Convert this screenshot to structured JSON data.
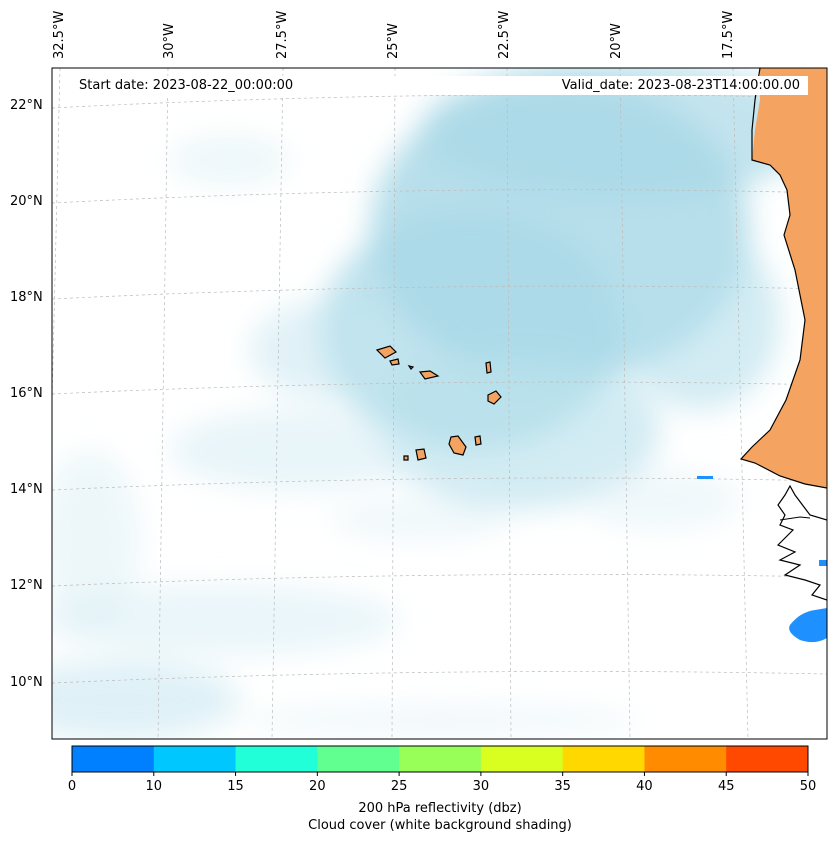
{
  "header": {
    "start_date": "Start date: 2023-08-22_00:00:00",
    "valid_date": "Valid_date: 2023-08-23T14:00:00.00"
  },
  "lon_ticks": [
    "32.5°W",
    "30°W",
    "27.5°W",
    "25°W",
    "22.5°W",
    "20°W",
    "17.5°W"
  ],
  "lat_ticks": [
    "22°N",
    "20°N",
    "18°N",
    "16°N",
    "14°N",
    "12°N",
    "10°N"
  ],
  "colorbar": {
    "colors": [
      "#0080ff",
      "#00c8ff",
      "#20ffd8",
      "#60ff90",
      "#98ff58",
      "#d8ff20",
      "#ffd800",
      "#ff8c00",
      "#ff4800"
    ],
    "ticks": [
      "0",
      "10",
      "15",
      "20",
      "25",
      "30",
      "35",
      "40",
      "45",
      "50"
    ],
    "label": "200 hPa reflectivity (dbz)",
    "sublabel": "Cloud cover (white background shading)"
  },
  "colors": {
    "land": "#f4a460",
    "cloud": "#a8d8e8",
    "reflectivity": "#0080ff"
  }
}
